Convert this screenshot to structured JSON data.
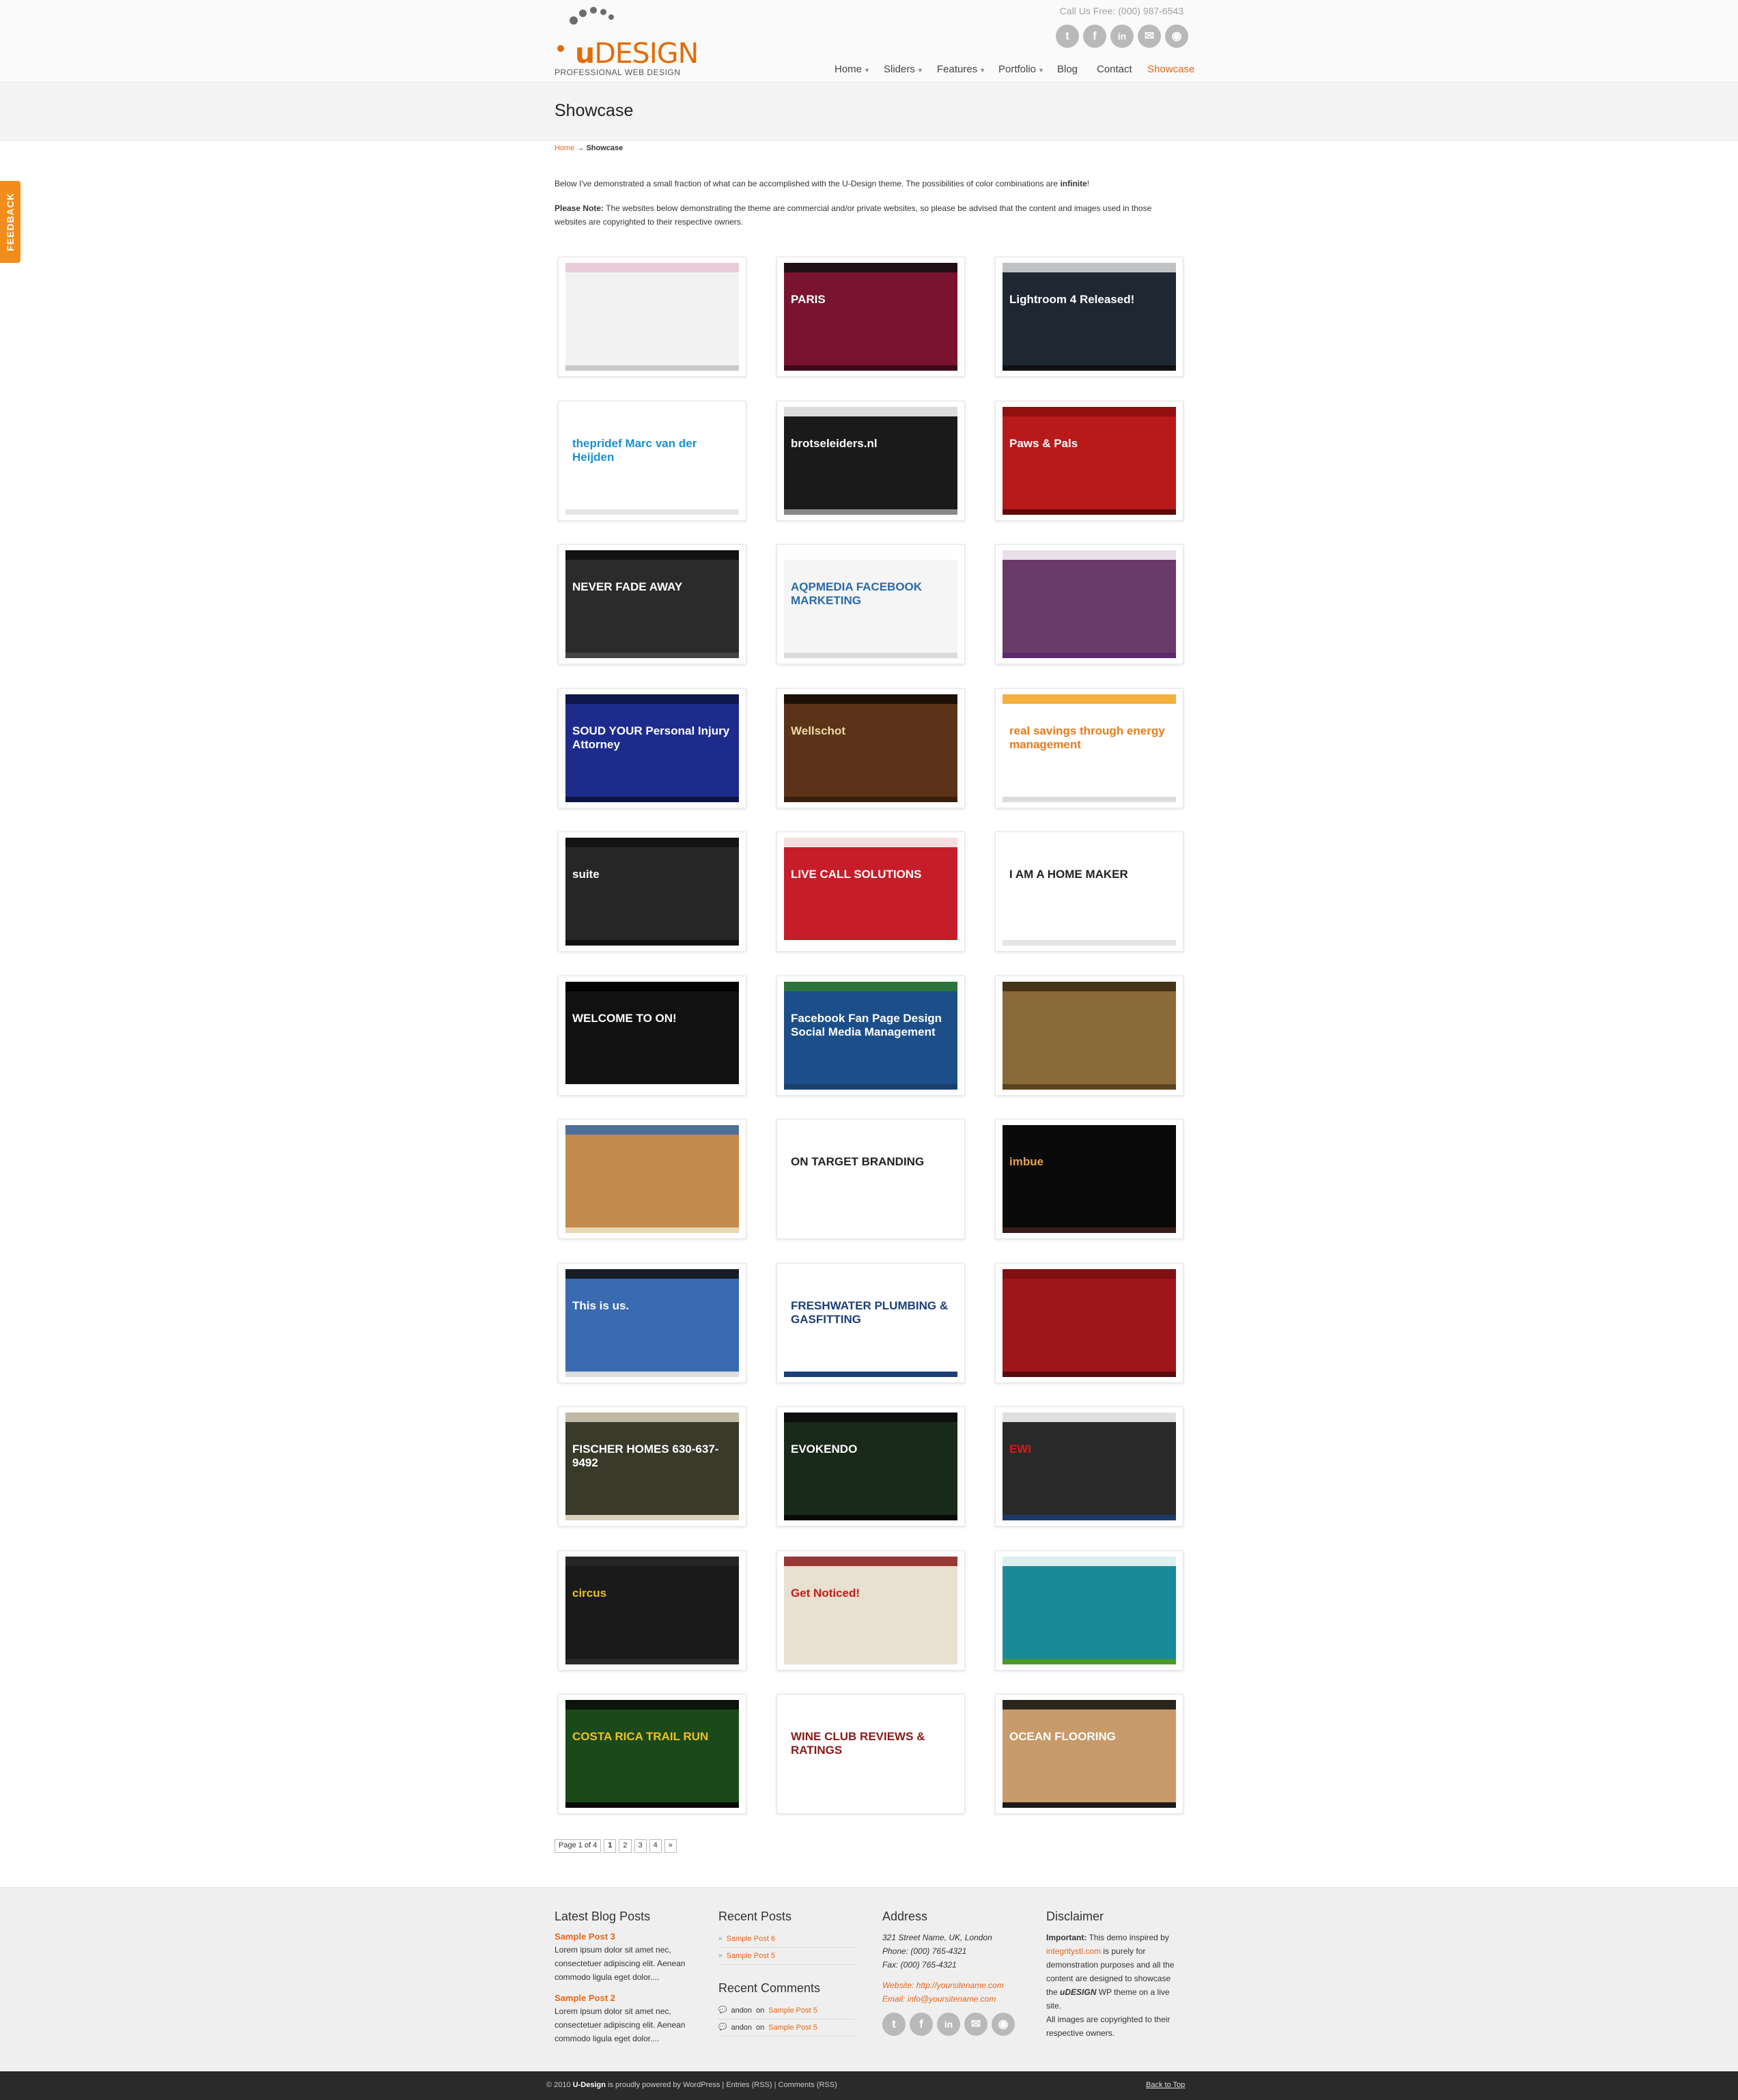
{
  "header": {
    "logo": {
      "brand_u": "u",
      "brand_rest": "DESIGN",
      "tagline": "PROFESSIONAL WEB DESIGN"
    },
    "call_us": "Call Us Free: (000) 987-6543",
    "social": [
      {
        "icon": "twitter-icon",
        "glyph": "t"
      },
      {
        "icon": "facebook-icon",
        "glyph": "f"
      },
      {
        "icon": "linkedin-icon",
        "glyph": "in"
      },
      {
        "icon": "email-icon",
        "glyph": "✉"
      },
      {
        "icon": "rss-icon",
        "glyph": "◉"
      }
    ],
    "nav": [
      {
        "label": "Home",
        "has_sub": true
      },
      {
        "label": "Sliders",
        "has_sub": true
      },
      {
        "label": "Features",
        "has_sub": true
      },
      {
        "label": "Portfolio",
        "has_sub": true
      },
      {
        "label": "Blog",
        "has_sub": false
      },
      {
        "label": "Contact",
        "has_sub": false
      },
      {
        "label": "Showcase",
        "has_sub": false,
        "active": true
      }
    ]
  },
  "page": {
    "title": "Showcase",
    "breadcrumb": {
      "home": "Home",
      "sep": "→",
      "current": "Showcase"
    },
    "intro": "Below I've demonstrated a small fraction of what can be accomplished with the U-Design theme. The possibilities of color combinations are",
    "intro_bold": "infinite",
    "intro_end": "!",
    "note_label": "Please Note:",
    "note_text": "The websites below demonstrating the theme are commercial and/or private websites, so please be advised that the content and images used in those websites are copyrighted to their respective owners."
  },
  "feedback_tab": "FEEDBACK",
  "showcase": [
    {
      "title": "",
      "bg": "#f2f2f2",
      "bar": "#e9c5d6",
      "line": "#c9c9c9",
      "text": "#999"
    },
    {
      "title": "PARIS",
      "bg": "#7a1330",
      "bar": "#111111",
      "line": "#3d0a1a",
      "text": "#ffffff"
    },
    {
      "title": "Lightroom 4 Released!",
      "bg": "#1f2732",
      "bar": "#dddddd",
      "line": "#111",
      "text": "#ffffff"
    },
    {
      "title": "thepridef  Marc van der Heijden",
      "bg": "#ffffff",
      "bar": "#ffffff",
      "line": "#e5e5e5",
      "text": "#1a8fd1"
    },
    {
      "title": "brotseleiders.nl",
      "bg": "#1a1a1a",
      "bar": "#ffffff",
      "line": "#888888",
      "text": "#ffffff"
    },
    {
      "title": "Paws & Pals",
      "bg": "#b81a1a",
      "bar": "#8a1010",
      "line": "#5e0b0b",
      "text": "#ffffff"
    },
    {
      "title": "NEVER FADE AWAY",
      "bg": "#2b2b2b",
      "bar": "#0e0e0e",
      "line": "#444",
      "text": "#ffffff"
    },
    {
      "title": "AQPMEDIA FACEBOOK MARKETING",
      "bg": "#f5f5f5",
      "bar": "#ffffff",
      "line": "#dcdcdc",
      "text": "#2a6aa8"
    },
    {
      "title": "",
      "bg": "#6a3a6a",
      "bar": "#ffffff",
      "line": "#5a2a6a",
      "text": "#ffffff"
    },
    {
      "title": "SOUD YOUR Personal Injury Attorney",
      "bg": "#1d2c8c",
      "bar": "#0d1440",
      "line": "#0d1440",
      "text": "#ffffff"
    },
    {
      "title": "Wellschot",
      "bg": "#5a3318",
      "bar": "#120a05",
      "line": "#3a1f0e",
      "text": "#f0d9a6"
    },
    {
      "title": "real savings through energy management",
      "bg": "#ffffff",
      "bar": "#f3a31a",
      "line": "#dcdcdc",
      "text": "#e87b1a"
    },
    {
      "title": "suite",
      "bg": "#262626",
      "bar": "#111111",
      "line": "#111",
      "text": "#ffffff"
    },
    {
      "title": "LIVE CALL SOLUTIONS",
      "bg": "#c71d2a",
      "bar": "#ffffff",
      "line": "#ffffff",
      "text": "#ffffff"
    },
    {
      "title": "I AM A HOME MAKER",
      "bg": "#ffffff",
      "bar": "#ffffff",
      "line": "#e5e5e5",
      "text": "#222"
    },
    {
      "title": "WELCOME TO ON!",
      "bg": "#111111",
      "bar": "#000000",
      "line": "#ffffff",
      "text": "#ffffff"
    },
    {
      "title": "Facebook Fan Page Design Social Media Management",
      "bg": "#1c4f8a",
      "bar": "#2e7a2e",
      "line": "#1c3f6a",
      "text": "#ffffff"
    },
    {
      "title": "",
      "bg": "#8a6a38",
      "bar": "#3a2a14",
      "line": "#5a4420",
      "text": "#ffffff"
    },
    {
      "title": "",
      "bg": "#c48a4c",
      "bar": "#3a6aa8",
      "line": "#e8d6b0",
      "text": "#ffffff"
    },
    {
      "title": "ON TARGET BRANDING",
      "bg": "#ffffff",
      "bar": "#ffffff",
      "line": "#ffffff",
      "text": "#222"
    },
    {
      "title": "imbue",
      "bg": "#0a0a0a",
      "bar": "#0a0a0a",
      "line": "#3a1a1a",
      "text": "#e8a050"
    },
    {
      "title": "This is us.",
      "bg": "#3a6ab0",
      "bar": "#111",
      "line": "#dddddd",
      "text": "#ffffff"
    },
    {
      "title": "FRESHWATER PLUMBING & GASFITTING",
      "bg": "#ffffff",
      "bar": "#ffffff",
      "line": "#1c3f7a",
      "text": "#1c3f7a"
    },
    {
      "title": "",
      "bg": "#a0151a",
      "bar": "#7a0f12",
      "line": "#5a0a0d",
      "text": "#ffffff"
    },
    {
      "title": "FISCHER HOMES 630-637-9492",
      "bg": "#3a3a2a",
      "bar": "#d8d0b8",
      "line": "#d8d0b8",
      "text": "#ffffff"
    },
    {
      "title": "EVOKENDO",
      "bg": "#1a2a1a",
      "bar": "#0a0a0a",
      "line": "#0a0a0a",
      "text": "#ffffff"
    },
    {
      "title": "EWI",
      "bg": "#2a2a2a",
      "bar": "#ffffff",
      "line": "#1a3a6a",
      "text": "#d81a1a"
    },
    {
      "title": "circus",
      "bg": "#1a1a1a",
      "bar": "#2a2a2a",
      "line": "#2a2a2a",
      "text": "#e8c020"
    },
    {
      "title": "Get Noticed!",
      "bg": "#e8e0d0",
      "bar": "#8a1a1a",
      "line": "#e8e0d0",
      "text": "#c81a1a"
    },
    {
      "title": "",
      "bg": "#1a8a9a",
      "bar": "#ffffff",
      "line": "#4a9a2a",
      "text": "#ffffff"
    },
    {
      "title": "COSTA RICA TRAIL RUN",
      "bg": "#1a4a1a",
      "bar": "#0a0a0a",
      "line": "#0a0a0a",
      "text": "#f0c020"
    },
    {
      "title": "WINE CLUB REVIEWS & RATINGS",
      "bg": "#ffffff",
      "bar": "#ffffff",
      "line": "#ffffff",
      "text": "#8a1a1a"
    },
    {
      "title": "OCEAN FLOORING",
      "bg": "#c89a6a",
      "bar": "#111111",
      "line": "#1a1a1a",
      "text": "#ffffff"
    }
  ],
  "pagination": {
    "page_of": "Page 1 of 4",
    "pages": [
      "1",
      "2",
      "3",
      "4"
    ],
    "next": "»"
  },
  "footer": {
    "latest": {
      "title": "Latest Blog Posts",
      "posts": [
        {
          "title": "Sample Post 3",
          "excerpt": "Lorem ipsum dolor sit amet nec, consectetuer adipiscing elit. Aenean commodo ligula eget dolor...."
        },
        {
          "title": "Sample Post 2",
          "excerpt": "Lorem ipsum dolor sit amet nec, consectetuer adipiscing elit. Aenean commodo ligula eget dolor...."
        }
      ]
    },
    "recent_posts": {
      "title": "Recent Posts",
      "items": [
        "Sample Post 6",
        "Sample Post 5"
      ]
    },
    "recent_comments": {
      "title": "Recent Comments",
      "items": [
        {
          "author": "andon",
          "on": "on",
          "post": "Sample Post 5"
        },
        {
          "author": "andon",
          "on": "on",
          "post": "Sample Post 5"
        }
      ]
    },
    "address": {
      "title": "Address",
      "line1": "321 Street Name, UK, London",
      "phone": "Phone: (000) 765-4321",
      "fax": "Fax: (000) 765-4321",
      "website": "Website: http://yoursitename.com",
      "email": "Email: info@yoursitename.com"
    },
    "disclaimer": {
      "title": "Disclaimer",
      "important": "Important:",
      "text1": "This demo inspired by",
      "link": "integritystl.com",
      "text2": "is purely for demonstration purposes and all the content are designed to showcase the",
      "brand": "uDESIGN",
      "text3": "WP theme on a live site.",
      "text4": "All images are copyrighted to their respective owners."
    }
  },
  "bottom": {
    "copyright_pre": "© 2010",
    "copyright_brand": "U-Design",
    "copyright_mid": "is proudly powered by",
    "copyright_wp": "WordPress",
    "entries": "Entries (RSS)",
    "comments": "Comments (RSS)",
    "back_to_top": "Back to Top"
  },
  "colors": {
    "accent": "#e8661a",
    "feedback": "#f28c1a",
    "footer_bg": "#efefef",
    "bottom_bar": "#2a2a2a"
  }
}
